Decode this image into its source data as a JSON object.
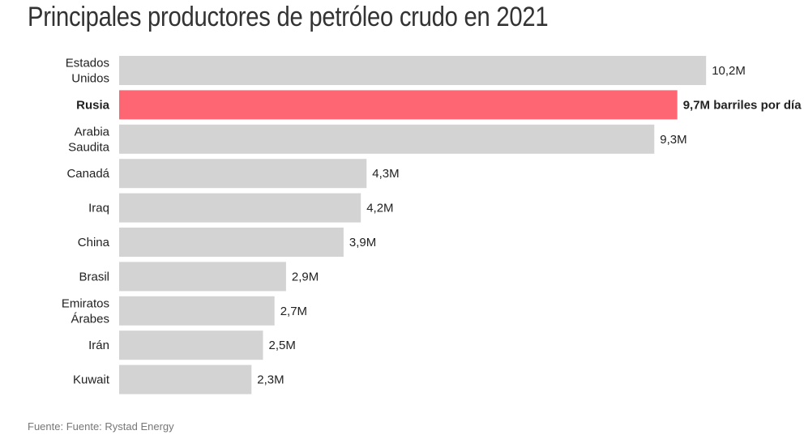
{
  "chart_data": {
    "type": "bar",
    "orientation": "horizontal",
    "title": "Principales productores de petróleo crudo en 2021",
    "categories": [
      [
        "Estados",
        "Unidos"
      ],
      [
        "Rusia"
      ],
      [
        "Arabia",
        "Saudita"
      ],
      [
        "Canadá"
      ],
      [
        "Iraq"
      ],
      [
        "China"
      ],
      [
        "Brasil"
      ],
      [
        "Emiratos",
        "Árabes"
      ],
      [
        "Irán"
      ],
      [
        "Kuwait"
      ]
    ],
    "values": [
      10.2,
      9.7,
      9.3,
      4.3,
      4.2,
      3.9,
      2.9,
      2.7,
      2.5,
      2.3
    ],
    "data_labels": [
      "10,2M",
      "9,7M barriles por día",
      "9,3M",
      "4,3M",
      "4,2M",
      "3,9M",
      "2,9M",
      "2,7M",
      "2,5M",
      "2,3M"
    ],
    "highlight_index": 1,
    "colors": {
      "default": "#d3d3d3",
      "highlight": "#ff6673"
    },
    "grid": false,
    "source": "Fuente: Fuente: Rystad Energy"
  }
}
